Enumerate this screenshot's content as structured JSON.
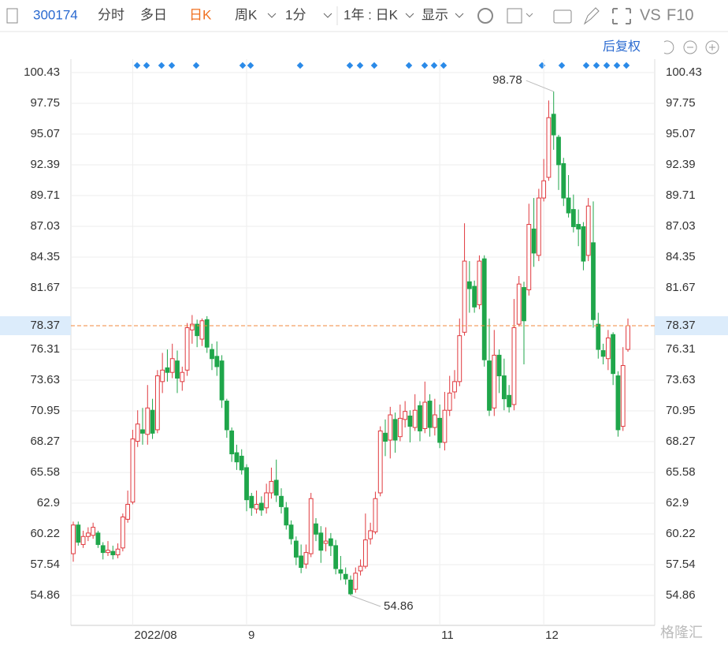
{
  "toolbar": {
    "code": "300174",
    "tabs": [
      "分时",
      "多日",
      "日K",
      "周K",
      "1分",
      "1年 : 日K",
      "显示"
    ],
    "vs": "VS",
    "f10": "F10",
    "adjust": "后复权"
  },
  "watermark": "格隆汇",
  "chart_data": {
    "type": "candlestick",
    "categories": [
      null,
      null,
      null,
      null,
      null,
      null,
      null,
      null,
      null,
      null,
      null,
      null,
      "2022/08",
      null,
      null,
      null,
      null,
      null,
      null,
      null,
      null,
      null,
      null,
      null,
      null,
      null,
      null,
      null,
      null,
      null,
      null,
      null,
      null,
      null,
      null,
      "9",
      null,
      null,
      null,
      null,
      null,
      null,
      null,
      null,
      null,
      null,
      null,
      null,
      null,
      null,
      null,
      null,
      null,
      null,
      null,
      null,
      null,
      null,
      null,
      null,
      null,
      null,
      null,
      null,
      null,
      null,
      null,
      null,
      null,
      null,
      null,
      null,
      null,
      null,
      "11",
      null,
      null,
      null,
      null,
      null,
      null,
      null,
      null,
      null,
      null,
      null,
      null,
      null,
      null,
      null,
      null,
      null,
      null,
      null,
      null,
      "12",
      null,
      null,
      null,
      null,
      null,
      null,
      null,
      null,
      null,
      null,
      null,
      null,
      null,
      null,
      null,
      null,
      null
    ],
    "open": [
      58.5,
      61,
      59.3,
      60,
      60.1,
      60.3,
      59.2,
      58.6,
      58.7,
      58.4,
      59,
      61.5,
      63,
      68.3,
      69.3,
      68.9,
      71,
      69.3,
      73.5,
      74.7,
      74.3,
      75.3,
      73.5,
      74.5,
      78,
      78.5,
      77.2,
      78.9,
      76.3,
      75.7,
      75.3,
      71.8,
      69.2,
      67.3,
      67,
      66,
      63.5,
      62.4,
      62.9,
      62.5,
      63.8,
      64.9,
      63.5,
      62.5,
      61,
      59.6,
      58.3,
      57.6,
      58.5,
      61.1,
      60.3,
      59.4,
      59.8,
      59.2,
      57.1,
      56.7,
      56.2,
      55.4,
      57,
      57.4,
      59.8,
      60.4,
      63.8,
      69,
      68.4,
      70.2,
      68.7,
      70.2,
      70.5,
      69.5,
      71.4,
      69.4,
      71.8,
      69.5,
      70.3,
      68.2,
      71,
      72.6,
      73.5,
      77.8,
      82.2,
      81.8,
      80.2,
      84.2,
      75.3,
      71.2,
      75.8,
      74,
      72.3,
      71.5,
      78.5,
      81.7,
      81.5,
      86.8,
      84.5,
      89.5,
      91.3,
      96.8,
      94.8,
      92.5,
      89.5,
      88.5,
      87.2,
      87,
      84.5,
      85.6,
      78.5,
      76.2,
      75.5,
      77.6,
      74,
      69.6,
      76.3
    ],
    "high": [
      61.3,
      61.3,
      60.5,
      60.8,
      61.2,
      60.5,
      59.5,
      59.6,
      59.2,
      59.4,
      62,
      64,
      69.3,
      71,
      71.2,
      73.2,
      72,
      74.5,
      76,
      76.3,
      76.8,
      76.2,
      74.8,
      78.6,
      79.3,
      78.9,
      79,
      79.2,
      76.8,
      77,
      75.8,
      72,
      69.5,
      68,
      67.6,
      66.3,
      63.8,
      64,
      63.5,
      64.6,
      66,
      66.7,
      64.2,
      63,
      61.4,
      60,
      59.3,
      59.3,
      63.8,
      61.6,
      60.9,
      60.8,
      60.3,
      59.7,
      58.3,
      57.3,
      56.6,
      57.3,
      58,
      62,
      61.2,
      63.9,
      69.6,
      70.2,
      71.3,
      70.8,
      71.5,
      71.8,
      71,
      72.4,
      71.8,
      73.5,
      72.4,
      72,
      71.5,
      72.6,
      74,
      74.5,
      79,
      87.3,
      84,
      82.3,
      84.5,
      84.5,
      79,
      78,
      76.3,
      75.5,
      73.2,
      80.7,
      82.7,
      82.2,
      89,
      89.5,
      90.3,
      92.9,
      98,
      98.78,
      95,
      93,
      91.5,
      89.8,
      88.5,
      87.4,
      89.5,
      89.2,
      79.5,
      76.8,
      78,
      77.8,
      74.4,
      76.5,
      79
    ],
    "low": [
      57.8,
      59.2,
      59,
      59.6,
      59.8,
      59,
      58,
      58.3,
      58,
      58.1,
      58.7,
      61.2,
      62.8,
      67.8,
      68,
      68,
      68.5,
      69,
      72.5,
      73.5,
      73.8,
      72.5,
      72.7,
      74,
      76.8,
      76.5,
      76.6,
      76,
      74.5,
      74,
      71.2,
      68.6,
      66.5,
      65.8,
      65.4,
      62.2,
      61.8,
      62,
      61.8,
      62,
      63.3,
      63,
      62,
      60.6,
      59.3,
      57.5,
      56.8,
      57.2,
      58.2,
      59.6,
      57.7,
      58.7,
      58.3,
      56.7,
      56.2,
      55.8,
      54.86,
      55.1,
      56.6,
      57.2,
      59.3,
      60.2,
      63.5,
      67,
      66.8,
      67.3,
      68.3,
      69.5,
      68.2,
      69.2,
      68.3,
      69,
      68.7,
      68.8,
      67.7,
      67.5,
      70.5,
      72,
      73.1,
      77.5,
      79.5,
      79.5,
      79.8,
      74.8,
      70.5,
      70.5,
      72.5,
      71,
      70.8,
      71,
      78.3,
      75,
      81,
      83.5,
      84,
      89.2,
      91,
      93.7,
      90.2,
      88.8,
      87.8,
      86.5,
      85.3,
      83.2,
      84,
      78.2,
      75.5,
      75,
      74.5,
      73.2,
      68.7,
      69.2,
      76.1
    ],
    "close": [
      61,
      59.5,
      60,
      60.3,
      60.8,
      59.3,
      58.6,
      58.8,
      58.4,
      58.9,
      61.7,
      62.8,
      68.5,
      69.8,
      69,
      71.2,
      69,
      74,
      74.5,
      74.3,
      75.5,
      73.8,
      74.3,
      78.2,
      78.5,
      77.5,
      78.8,
      76.5,
      75.5,
      74.8,
      71.9,
      69.3,
      67.2,
      66.5,
      65.8,
      63.2,
      62.5,
      62.8,
      62.3,
      63.8,
      64.8,
      63.6,
      62.6,
      61,
      59.8,
      58.2,
      57.3,
      58.6,
      63.3,
      60.2,
      58.8,
      59.6,
      59.2,
      57.2,
      56.8,
      56.3,
      55,
      56.8,
      57.4,
      59.7,
      60.5,
      63.3,
      69.2,
      68.3,
      70.6,
      68.4,
      70.3,
      70.9,
      69.6,
      71,
      69.2,
      71.7,
      69.5,
      70.6,
      68.2,
      71,
      72.5,
      73.5,
      77.5,
      84,
      81.6,
      80,
      84,
      75.4,
      71,
      75.8,
      74,
      72,
      71.3,
      78.2,
      82,
      78.8,
      87.2,
      84.7,
      89.5,
      91,
      96.5,
      95,
      92.4,
      89.5,
      88.2,
      87,
      86.8,
      84,
      88.8,
      78.9,
      76.3,
      75.7,
      77.3,
      74.2,
      69.3,
      74.9,
      78.37
    ],
    "ylim": [
      52.25,
      103.87
    ],
    "yticks": [
      100.43,
      97.75,
      95.07,
      92.39,
      89.71,
      87.03,
      84.35,
      81.67,
      76.31,
      73.63,
      70.95,
      68.27,
      65.58,
      62.9,
      60.22,
      57.54,
      54.86
    ],
    "grid": true,
    "high_mark": 98.78,
    "low_mark": 54.86,
    "up_color": "#e0393e",
    "down_color": "#1fa64a",
    "last_color": "#f08a3c"
  }
}
